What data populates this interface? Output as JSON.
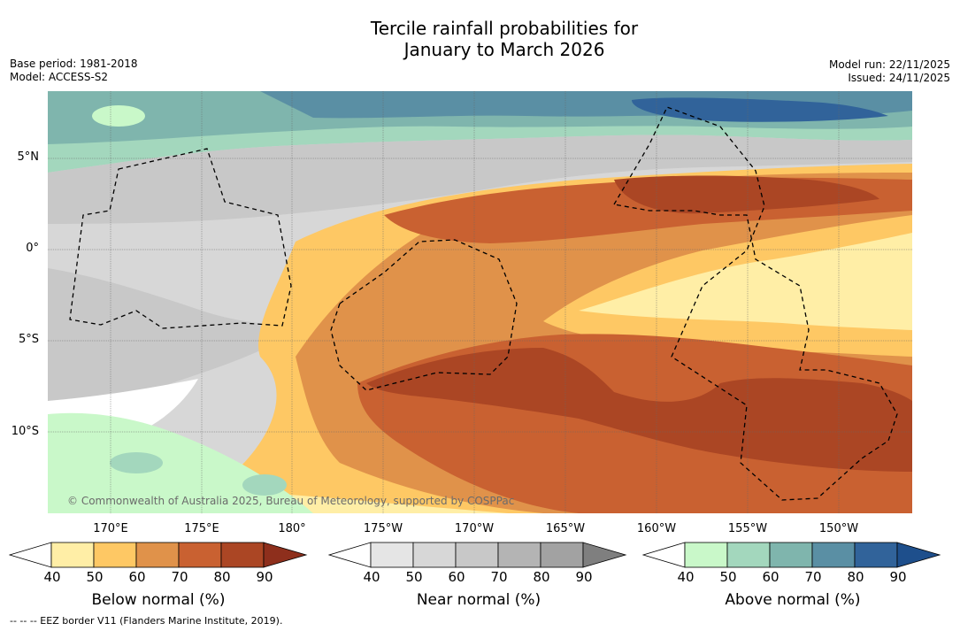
{
  "title": {
    "line1": "Tercile rainfall probabilities for",
    "line2": "January to March 2026"
  },
  "meta_left": {
    "base_period": "Base period: 1981-2018",
    "model": "Model: ACCESS-S2"
  },
  "meta_right": {
    "model_run": "Model run: 22/11/2025",
    "issued": "Issued: 24/11/2025"
  },
  "map": {
    "latitude_labels": [
      "5°N",
      "0°",
      "5°S",
      "10°S"
    ],
    "longitude_labels": [
      "170°E",
      "175°E",
      "180°",
      "175°W",
      "170°W",
      "165°W",
      "160°W",
      "155°W",
      "150°W"
    ],
    "copyright": "© Commonwealth of Australia 2025, Bureau of Meteorology, supported by COSPPac"
  },
  "colorbars": [
    {
      "title": "Below normal (%)",
      "ticks": [
        "40",
        "50",
        "60",
        "70",
        "80",
        "90"
      ],
      "colors": [
        "#ffffff",
        "#ffeea6",
        "#fec864",
        "#e0924a",
        "#c96131",
        "#ab4624",
        "#8e2f1c"
      ]
    },
    {
      "title": "Near normal (%)",
      "ticks": [
        "40",
        "50",
        "60",
        "70",
        "80",
        "90"
      ],
      "colors": [
        "#ffffff",
        "#e5e5e5",
        "#d7d7d7",
        "#c8c8c8",
        "#b4b4b4",
        "#a2a2a2",
        "#7f7f7f"
      ]
    },
    {
      "title": "Above normal (%)",
      "ticks": [
        "40",
        "50",
        "60",
        "70",
        "80",
        "90"
      ],
      "colors": [
        "#ffffff",
        "#c9f8c9",
        "#a3d7bd",
        "#7fb5ad",
        "#5a8fa4",
        "#31639a",
        "#1e4f8c"
      ]
    }
  ],
  "footnote": "--  --  -- EEZ border V11 (Flanders Marine Institute, 2019)."
}
